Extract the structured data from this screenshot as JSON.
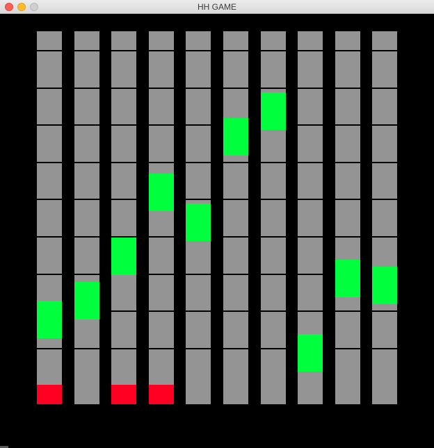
{
  "window": {
    "title": "HH GAME"
  },
  "colors": {
    "lane": "#949494",
    "active_note": "#00ff3c",
    "hit_base": "#ff0022",
    "idle_base": "#949494",
    "background": "#000000"
  },
  "board": {
    "lane_count": 10,
    "lanes": [
      {
        "note_row": 7.7,
        "base_state": "hit"
      },
      {
        "note_row": 7.2,
        "base_state": "idle"
      },
      {
        "note_row": 6.0,
        "base_state": "hit"
      },
      {
        "note_row": 4.3,
        "base_state": "hit"
      },
      {
        "note_row": 5.1,
        "base_state": "idle"
      },
      {
        "note_row": 2.8,
        "base_state": "idle"
      },
      {
        "note_row": 2.1,
        "base_state": "idle"
      },
      {
        "note_row": 8.6,
        "base_state": "idle"
      },
      {
        "note_row": 6.6,
        "base_state": "idle"
      },
      {
        "note_row": 6.8,
        "base_state": "idle"
      }
    ]
  }
}
